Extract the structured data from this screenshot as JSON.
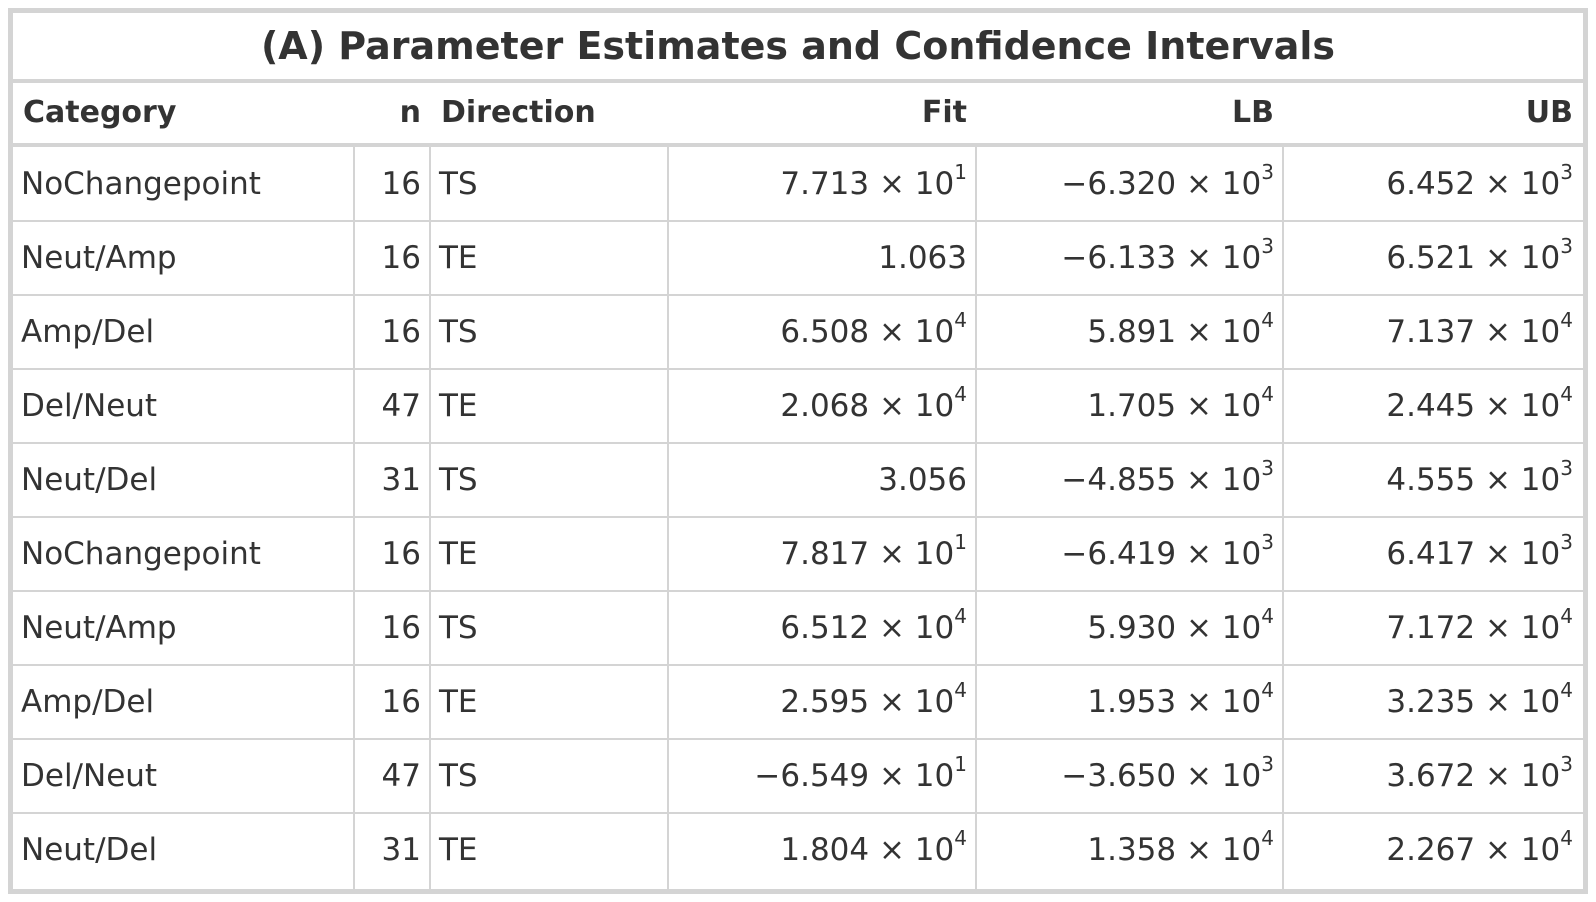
{
  "title": "(A) Parameter Estimates and Confidence Intervals",
  "columns": [
    "Category",
    "n",
    "Direction",
    "Fit",
    "LB",
    "UB"
  ],
  "rows": [
    {
      "category": "NoChangepoint",
      "n": "16",
      "direction": "TS",
      "fit": {
        "mantissa": "7.713",
        "exp": "1"
      },
      "lb": {
        "mantissa": "−6.320",
        "exp": "3"
      },
      "ub": {
        "mantissa": "6.452",
        "exp": "3"
      }
    },
    {
      "category": "Neut/Amp",
      "n": "16",
      "direction": "TE",
      "fit": {
        "mantissa": "1.063",
        "exp": ""
      },
      "lb": {
        "mantissa": "−6.133",
        "exp": "3"
      },
      "ub": {
        "mantissa": "6.521",
        "exp": "3"
      }
    },
    {
      "category": "Amp/Del",
      "n": "16",
      "direction": "TS",
      "fit": {
        "mantissa": "6.508",
        "exp": "4"
      },
      "lb": {
        "mantissa": "5.891",
        "exp": "4"
      },
      "ub": {
        "mantissa": "7.137",
        "exp": "4"
      }
    },
    {
      "category": "Del/Neut",
      "n": "47",
      "direction": "TE",
      "fit": {
        "mantissa": "2.068",
        "exp": "4"
      },
      "lb": {
        "mantissa": "1.705",
        "exp": "4"
      },
      "ub": {
        "mantissa": "2.445",
        "exp": "4"
      }
    },
    {
      "category": "Neut/Del",
      "n": "31",
      "direction": "TS",
      "fit": {
        "mantissa": "3.056",
        "exp": ""
      },
      "lb": {
        "mantissa": "−4.855",
        "exp": "3"
      },
      "ub": {
        "mantissa": "4.555",
        "exp": "3"
      }
    },
    {
      "category": "NoChangepoint",
      "n": "16",
      "direction": "TE",
      "fit": {
        "mantissa": "7.817",
        "exp": "1"
      },
      "lb": {
        "mantissa": "−6.419",
        "exp": "3"
      },
      "ub": {
        "mantissa": "6.417",
        "exp": "3"
      }
    },
    {
      "category": "Neut/Amp",
      "n": "16",
      "direction": "TS",
      "fit": {
        "mantissa": "6.512",
        "exp": "4"
      },
      "lb": {
        "mantissa": "5.930",
        "exp": "4"
      },
      "ub": {
        "mantissa": "7.172",
        "exp": "4"
      }
    },
    {
      "category": "Amp/Del",
      "n": "16",
      "direction": "TE",
      "fit": {
        "mantissa": "2.595",
        "exp": "4"
      },
      "lb": {
        "mantissa": "1.953",
        "exp": "4"
      },
      "ub": {
        "mantissa": "3.235",
        "exp": "4"
      }
    },
    {
      "category": "Del/Neut",
      "n": "47",
      "direction": "TS",
      "fit": {
        "mantissa": "−6.549",
        "exp": "1"
      },
      "lb": {
        "mantissa": "−3.650",
        "exp": "3"
      },
      "ub": {
        "mantissa": "3.672",
        "exp": "3"
      }
    },
    {
      "category": "Neut/Del",
      "n": "31",
      "direction": "TE",
      "fit": {
        "mantissa": "1.804",
        "exp": "4"
      },
      "lb": {
        "mantissa": "1.358",
        "exp": "4"
      },
      "ub": {
        "mantissa": "2.267",
        "exp": "4"
      }
    }
  ],
  "colors": {
    "border": "#d4d4d4",
    "text": "#333333",
    "background": "#ffffff"
  }
}
